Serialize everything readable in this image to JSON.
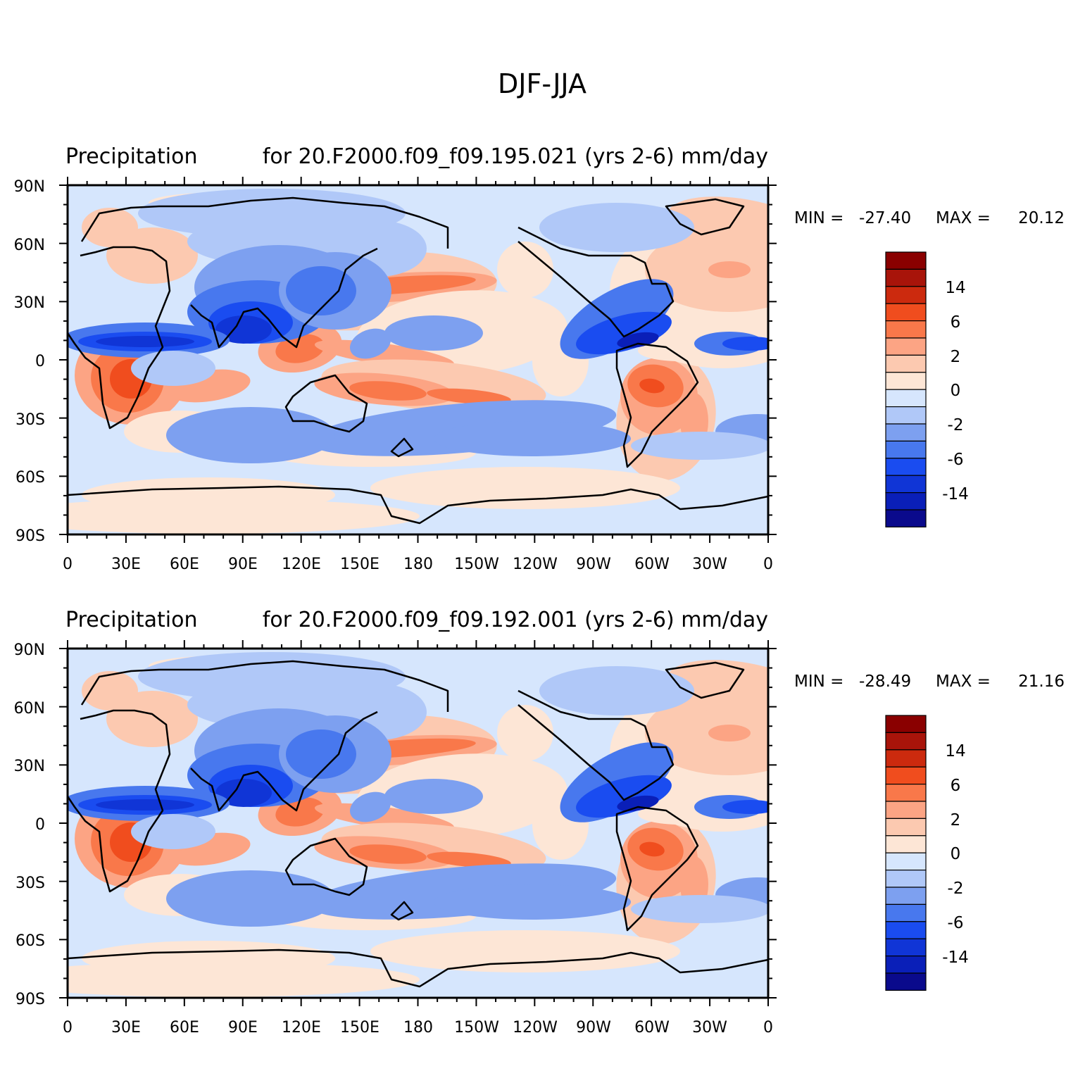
{
  "main_title": "DJF-JJA",
  "colors": {
    "land_outline": "#000000",
    "frame": "#000000",
    "palette": [
      "#0a0a8c",
      "#0a1fb8",
      "#1035d6",
      "#1a4cf0",
      "#4878ee",
      "#7da0f0",
      "#b0c8f8",
      "#d6e6fd",
      "#fde6d6",
      "#fcc9b0",
      "#fca484",
      "#f9784a",
      "#f04d1e",
      "#cc2a0e",
      "#a8140a",
      "#8a0000"
    ]
  },
  "panels": [
    {
      "title_left": "Precipitation",
      "title_case": "for 20.F2000.f09_f09.195.021 (yrs 2-6) mm/day",
      "min_label": "MIN =",
      "min_value": "-27.40",
      "max_label": "MAX =",
      "max_value": "20.12"
    },
    {
      "title_left": "Precipitation",
      "title_case": "for 20.F2000.f09_f09.192.001 (yrs 2-6) mm/day",
      "min_label": "MIN =",
      "min_value": "-28.49",
      "max_label": "MAX =",
      "max_value": "21.16"
    }
  ],
  "axes": {
    "lat_labels": [
      "90N",
      "60N",
      "30N",
      "0",
      "30S",
      "60S",
      "90S"
    ],
    "lon_labels": [
      "0",
      "30E",
      "60E",
      "90E",
      "120E",
      "150E",
      "180",
      "150W",
      "120W",
      "90W",
      "60W",
      "30W",
      "0"
    ]
  },
  "colorbar": {
    "labels": [
      "14",
      "6",
      "2",
      "0",
      "-2",
      "-6",
      "-14"
    ]
  }
}
